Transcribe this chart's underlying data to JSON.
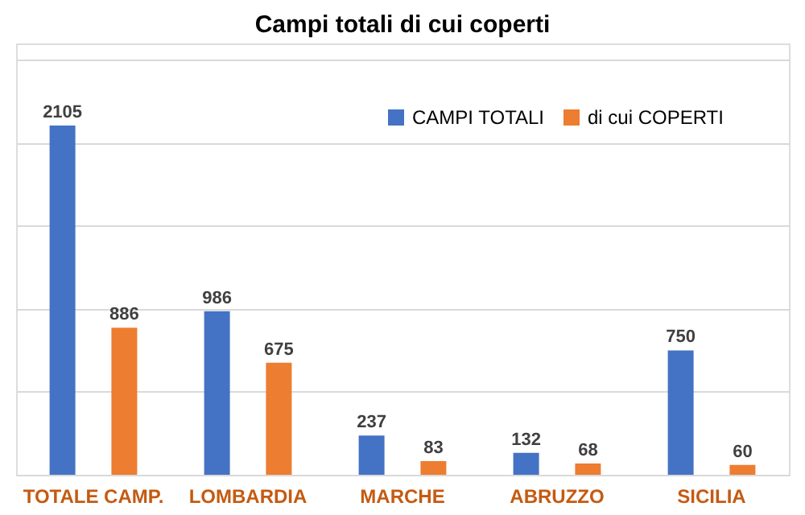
{
  "chart_data": {
    "type": "bar",
    "title": "Campi totali di cui coperti",
    "categories": [
      "TOTALE CAMP.",
      "LOMBARDIA",
      "MARCHE",
      "ABRUZZO",
      "SICILIA"
    ],
    "series": [
      {
        "name": "CAMPI TOTALI",
        "color": "#4472c4",
        "values": [
          2105,
          986,
          237,
          132,
          750
        ]
      },
      {
        "name": "di cui COPERTI",
        "color": "#ed7d31",
        "values": [
          886,
          675,
          83,
          68,
          60
        ]
      }
    ],
    "ylim": [
      0,
      2600
    ],
    "yticks": [
      {
        "value": 0,
        "label": null
      },
      {
        "value": 500,
        "label": null
      },
      {
        "value": 1000,
        "label": null
      },
      {
        "value": 1500,
        "label": null
      },
      {
        "value": 2000,
        "label": null
      },
      {
        "value": 2500,
        "label": null
      }
    ],
    "tick_labels": "x",
    "grid": "y",
    "data_labels": true,
    "legend": "top right"
  }
}
